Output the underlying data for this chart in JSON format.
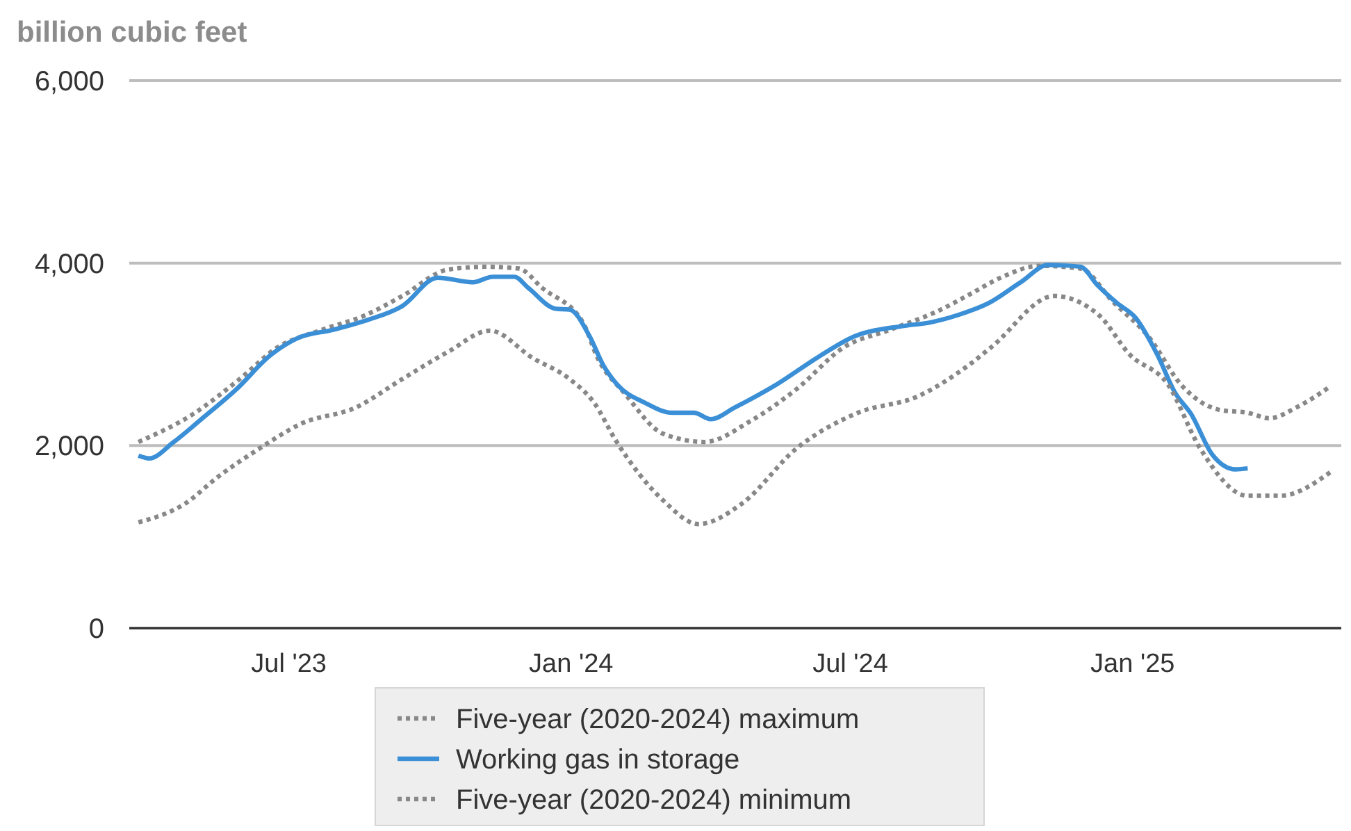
{
  "chart_data": {
    "type": "line",
    "ylabel": "billion cubic feet",
    "xlim": [
      "2023-03-19",
      "2025-05-17"
    ],
    "xticks": [
      {
        "value": "2023-07-01",
        "label": "Jul '23"
      },
      {
        "value": "2024-01-01",
        "label": "Jan '24"
      },
      {
        "value": "2024-07-01",
        "label": "Jul '24"
      },
      {
        "value": "2025-01-01",
        "label": "Jan '25"
      }
    ],
    "ylim": [
      0,
      6000
    ],
    "yticks": [
      {
        "value": 0,
        "label": "0"
      },
      {
        "value": 2000,
        "label": "2,000"
      },
      {
        "value": 4000,
        "label": "4,000"
      },
      {
        "value": 6000,
        "label": "6,000"
      }
    ],
    "grid": "y",
    "legend": "bottom",
    "marker": "none",
    "series": [
      {
        "name": "Five-year (2020-2024) maximum",
        "color": "#888888",
        "line_style": "dotted",
        "x": [
          "2023-03-25",
          "2023-04-30",
          "2023-05-30",
          "2023-06-24",
          "2023-07-21",
          "2023-08-20",
          "2023-09-13",
          "2023-10-13",
          "2023-11-07",
          "2023-11-28",
          "2023-12-13",
          "2024-01-09",
          "2024-01-18",
          "2024-02-05",
          "2024-03-01",
          "2024-03-28",
          "2024-04-27",
          "2024-05-27",
          "2024-06-27",
          "2024-07-27",
          "2024-08-29",
          "2024-09-16",
          "2024-10-07",
          "2024-11-01",
          "2024-11-28",
          "2024-12-19",
          "2025-01-12",
          "2025-02-02",
          "2025-02-27",
          "2025-03-17",
          "2025-03-31",
          "2025-04-18",
          "2025-05-10"
        ],
        "values": [
          2040,
          2350,
          2730,
          3080,
          3260,
          3430,
          3640,
          3930,
          3960,
          3940,
          3730,
          3340,
          2970,
          2570,
          2130,
          2040,
          2270,
          2620,
          3080,
          3270,
          3490,
          3650,
          3840,
          3970,
          3940,
          3580,
          3180,
          2660,
          2390,
          2360,
          2300,
          2420,
          2650
        ]
      },
      {
        "name": "Working gas in storage",
        "color": "#3a8fd6",
        "line_style": "solid",
        "x": [
          "2023-03-25",
          "2023-04-01",
          "2023-04-17",
          "2023-05-05",
          "2023-05-28",
          "2023-06-19",
          "2023-07-07",
          "2023-07-30",
          "2023-08-22",
          "2023-09-13",
          "2023-10-06",
          "2023-10-29",
          "2023-11-11",
          "2023-11-25",
          "2023-12-04",
          "2023-12-22",
          "2023-12-31",
          "2024-01-13",
          "2024-01-22",
          "2024-01-31",
          "2024-02-18",
          "2024-03-07",
          "2024-03-21",
          "2024-04-01",
          "2024-04-17",
          "2024-05-14",
          "2024-06-10",
          "2024-07-04",
          "2024-08-04",
          "2024-08-22",
          "2024-09-09",
          "2024-09-29",
          "2024-10-20",
          "2024-11-07",
          "2024-11-28",
          "2024-12-09",
          "2024-12-22",
          "2025-01-03",
          "2025-01-17",
          "2025-01-29",
          "2025-02-08",
          "2025-02-22",
          "2025-03-09",
          "2025-03-17"
        ],
        "values": [
          1890,
          1860,
          2040,
          2290,
          2620,
          2990,
          3180,
          3270,
          3380,
          3530,
          3840,
          3790,
          3850,
          3850,
          3730,
          3500,
          3490,
          3200,
          2880,
          2670,
          2470,
          2360,
          2360,
          2290,
          2420,
          2670,
          2970,
          3200,
          3310,
          3350,
          3430,
          3560,
          3790,
          3980,
          3960,
          3760,
          3560,
          3400,
          3000,
          2570,
          2350,
          1900,
          1740,
          1750
        ]
      },
      {
        "name": "Five-year (2020-2024) minimum",
        "color": "#888888",
        "line_style": "dotted",
        "x": [
          "2023-03-25",
          "2023-04-24",
          "2023-05-16",
          "2023-06-12",
          "2023-07-09",
          "2023-08-14",
          "2023-09-13",
          "2023-10-13",
          "2023-11-09",
          "2023-12-07",
          "2023-12-31",
          "2024-01-16",
          "2024-01-30",
          "2024-03-01",
          "2024-03-24",
          "2024-04-21",
          "2024-05-27",
          "2024-07-06",
          "2024-08-14",
          "2024-09-16",
          "2024-10-01",
          "2024-11-11",
          "2024-12-10",
          "2024-12-30",
          "2025-01-24",
          "2025-02-14",
          "2025-03-17",
          "2025-04-07",
          "2025-05-10"
        ],
        "values": [
          1160,
          1360,
          1660,
          1970,
          2240,
          2420,
          2730,
          3030,
          3260,
          2960,
          2730,
          2470,
          2060,
          1400,
          1140,
          1360,
          1970,
          2360,
          2540,
          2880,
          3080,
          3640,
          3430,
          3000,
          2670,
          1970,
          1450,
          1450,
          1710
        ]
      }
    ]
  }
}
